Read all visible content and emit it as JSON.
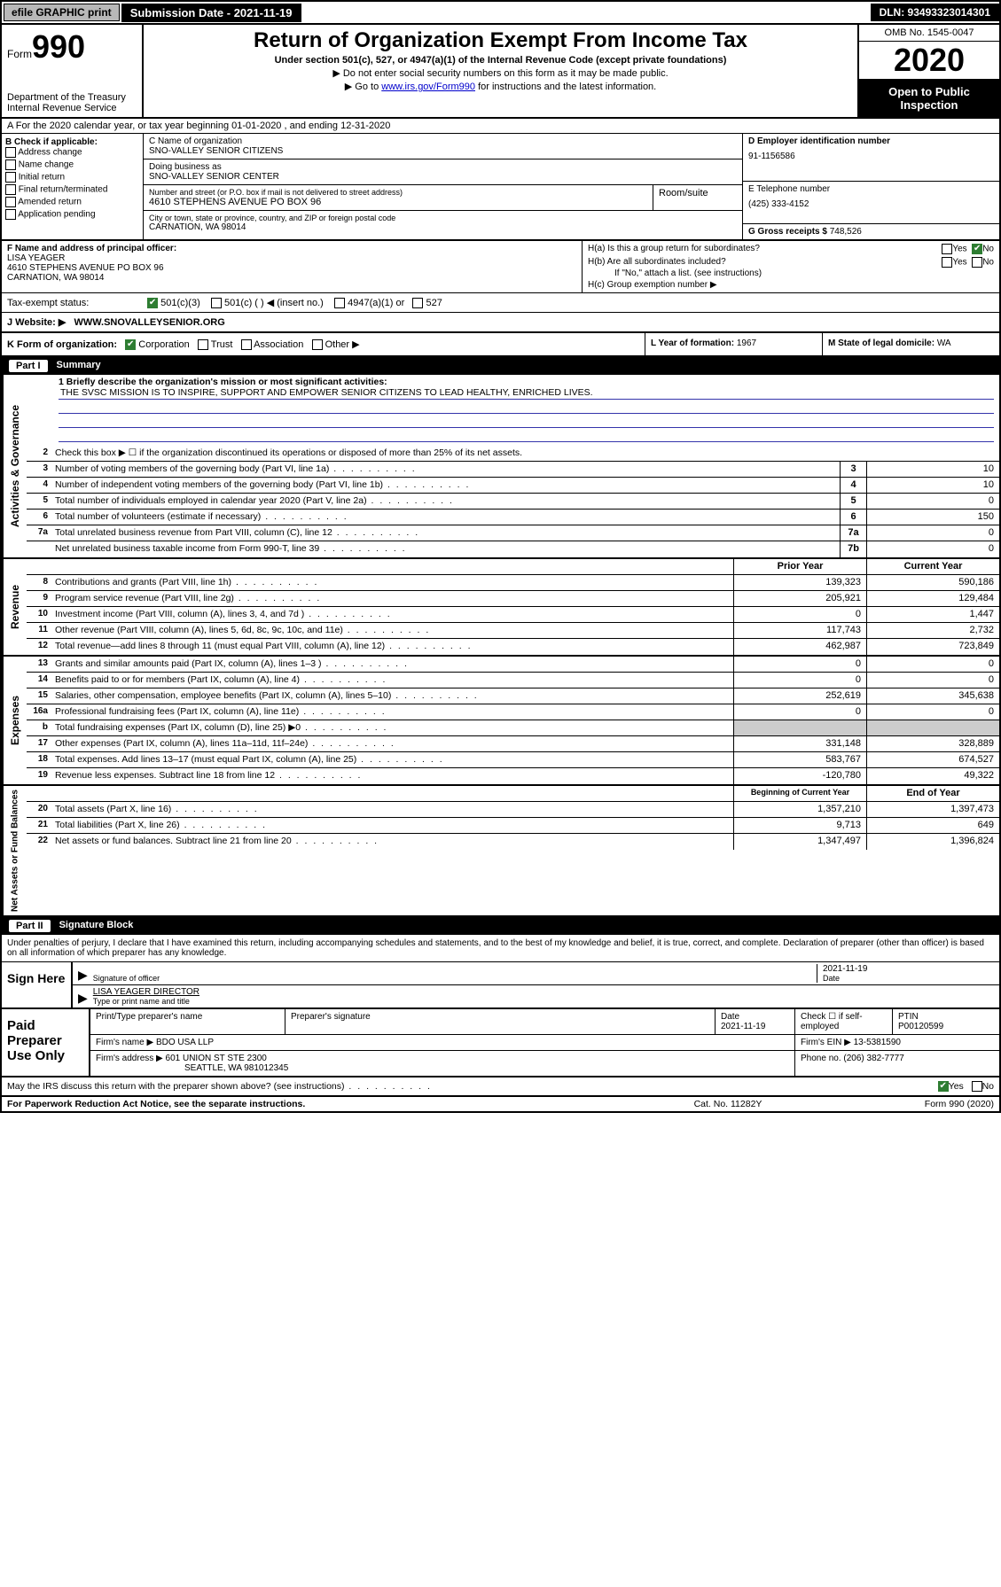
{
  "topbar": {
    "efile": "efile GRAPHIC print",
    "submission": "Submission Date - 2021-11-19",
    "dln": "DLN: 93493323014301"
  },
  "header": {
    "form_prefix": "Form",
    "form_number": "990",
    "dept": "Department of the Treasury\nInternal Revenue Service",
    "title": "Return of Organization Exempt From Income Tax",
    "subtitle": "Under section 501(c), 527, or 4947(a)(1) of the Internal Revenue Code (except private foundations)",
    "note1": "▶ Do not enter social security numbers on this form as it may be made public.",
    "note2_pre": "▶ Go to ",
    "note2_link": "www.irs.gov/Form990",
    "note2_post": " for instructions and the latest information.",
    "omb": "OMB No. 1545-0047",
    "year": "2020",
    "inspection": "Open to Public Inspection"
  },
  "row_a": "A For the 2020 calendar year, or tax year beginning 01-01-2020    , and ending 12-31-2020",
  "col_b": {
    "title": "B Check if applicable:",
    "items": [
      "Address change",
      "Name change",
      "Initial return",
      "Final return/terminated",
      "Amended return",
      "Application pending"
    ]
  },
  "col_c": {
    "name_lbl": "C Name of organization",
    "name": "SNO-VALLEY SENIOR CITIZENS",
    "dba_lbl": "Doing business as",
    "dba": "SNO-VALLEY SENIOR CENTER",
    "addr_lbl": "Number and street (or P.O. box if mail is not delivered to street address)",
    "addr": "4610 STEPHENS AVENUE PO BOX 96",
    "room_lbl": "Room/suite",
    "city_lbl": "City or town, state or province, country, and ZIP or foreign postal code",
    "city": "CARNATION, WA  98014"
  },
  "col_d": {
    "ein_lbl": "D Employer identification number",
    "ein": "91-1156586",
    "phone_lbl": "E Telephone number",
    "phone": "(425) 333-4152",
    "gross_lbl": "G Gross receipts $",
    "gross": "748,526"
  },
  "row_f": {
    "lbl": "F  Name and address of principal officer:",
    "name": "LISA YEAGER",
    "addr1": "4610 STEPHENS AVENUE PO BOX 96",
    "addr2": "CARNATION, WA  98014"
  },
  "row_h": {
    "ha": "H(a)  Is this a group return for subordinates?",
    "hb": "H(b)  Are all subordinates included?",
    "hb_note": "If \"No,\" attach a list. (see instructions)",
    "hc": "H(c)  Group exemption number ▶"
  },
  "tax_status_lbl": "Tax-exempt status:",
  "tax_501c3": "501(c)(3)",
  "tax_501c": "501(c) (   ) ◀ (insert no.)",
  "tax_4947": "4947(a)(1) or",
  "tax_527": "527",
  "website_lbl": "J    Website: ▶",
  "website": "WWW.SNOVALLEYSENIOR.ORG",
  "row_k": {
    "k": "K Form of organization:",
    "corp": "Corporation",
    "trust": "Trust",
    "assoc": "Association",
    "other": "Other ▶",
    "l_lbl": "L Year of formation:",
    "l_val": "1967",
    "m_lbl": "M State of legal domicile:",
    "m_val": "WA"
  },
  "part1": {
    "label": "Part I",
    "title": "Summary"
  },
  "mission_lbl": "1   Briefly describe the organization's mission or most significant activities:",
  "mission": "THE SVSC MISSION IS TO INSPIRE, SUPPORT AND EMPOWER SENIOR CITIZENS TO LEAD HEALTHY, ENRICHED LIVES.",
  "line2": "Check this box ▶ ☐  if the organization discontinued its operations or disposed of more than 25% of its net assets.",
  "governance_lines": [
    {
      "n": "3",
      "d": "Number of voting members of the governing body (Part VI, line 1a)",
      "b": "3",
      "v": "10"
    },
    {
      "n": "4",
      "d": "Number of independent voting members of the governing body (Part VI, line 1b)",
      "b": "4",
      "v": "10"
    },
    {
      "n": "5",
      "d": "Total number of individuals employed in calendar year 2020 (Part V, line 2a)",
      "b": "5",
      "v": "0"
    },
    {
      "n": "6",
      "d": "Total number of volunteers (estimate if necessary)",
      "b": "6",
      "v": "150"
    },
    {
      "n": "7a",
      "d": "Total unrelated business revenue from Part VIII, column (C), line 12",
      "b": "7a",
      "v": "0"
    },
    {
      "n": "",
      "d": "Net unrelated business taxable income from Form 990-T, line 39",
      "b": "7b",
      "v": "0"
    }
  ],
  "col_headers": {
    "prior": "Prior Year",
    "current": "Current Year"
  },
  "revenue_lines": [
    {
      "n": "8",
      "d": "Contributions and grants (Part VIII, line 1h)",
      "p": "139,323",
      "c": "590,186"
    },
    {
      "n": "9",
      "d": "Program service revenue (Part VIII, line 2g)",
      "p": "205,921",
      "c": "129,484"
    },
    {
      "n": "10",
      "d": "Investment income (Part VIII, column (A), lines 3, 4, and 7d )",
      "p": "0",
      "c": "1,447"
    },
    {
      "n": "11",
      "d": "Other revenue (Part VIII, column (A), lines 5, 6d, 8c, 9c, 10c, and 11e)",
      "p": "117,743",
      "c": "2,732"
    },
    {
      "n": "12",
      "d": "Total revenue—add lines 8 through 11 (must equal Part VIII, column (A), line 12)",
      "p": "462,987",
      "c": "723,849"
    }
  ],
  "expense_lines": [
    {
      "n": "13",
      "d": "Grants and similar amounts paid (Part IX, column (A), lines 1–3 )",
      "p": "0",
      "c": "0"
    },
    {
      "n": "14",
      "d": "Benefits paid to or for members (Part IX, column (A), line 4)",
      "p": "0",
      "c": "0"
    },
    {
      "n": "15",
      "d": "Salaries, other compensation, employee benefits (Part IX, column (A), lines 5–10)",
      "p": "252,619",
      "c": "345,638"
    },
    {
      "n": "16a",
      "d": "Professional fundraising fees (Part IX, column (A), line 11e)",
      "p": "0",
      "c": "0"
    },
    {
      "n": "b",
      "d": "Total fundraising expenses (Part IX, column (D), line 25) ▶0",
      "p": "",
      "c": "",
      "shade": true
    },
    {
      "n": "17",
      "d": "Other expenses (Part IX, column (A), lines 11a–11d, 11f–24e)",
      "p": "331,148",
      "c": "328,889"
    },
    {
      "n": "18",
      "d": "Total expenses. Add lines 13–17 (must equal Part IX, column (A), line 25)",
      "p": "583,767",
      "c": "674,527"
    },
    {
      "n": "19",
      "d": "Revenue less expenses. Subtract line 18 from line 12",
      "p": "-120,780",
      "c": "49,322"
    }
  ],
  "net_headers": {
    "begin": "Beginning of Current Year",
    "end": "End of Year"
  },
  "net_lines": [
    {
      "n": "20",
      "d": "Total assets (Part X, line 16)",
      "p": "1,357,210",
      "c": "1,397,473"
    },
    {
      "n": "21",
      "d": "Total liabilities (Part X, line 26)",
      "p": "9,713",
      "c": "649"
    },
    {
      "n": "22",
      "d": "Net assets or fund balances. Subtract line 21 from line 20",
      "p": "1,347,497",
      "c": "1,396,824"
    }
  ],
  "part2": {
    "label": "Part II",
    "title": "Signature Block"
  },
  "sig_text": "Under penalties of perjury, I declare that I have examined this return, including accompanying schedules and statements, and to the best of my knowledge and belief, it is true, correct, and complete. Declaration of preparer (other than officer) is based on all information of which preparer has any knowledge.",
  "sign_here": "Sign Here",
  "sig_officer": "Signature of officer",
  "sig_date": "2021-11-19",
  "sig_date_lbl": "Date",
  "sig_name": "LISA YEAGER  DIRECTOR",
  "sig_name_lbl": "Type or print name and title",
  "paid": {
    "title": "Paid Preparer Use Only",
    "h1": "Print/Type preparer's name",
    "h2": "Preparer's signature",
    "h3": "Date",
    "h3v": "2021-11-19",
    "h4": "Check ☐ if self-employed",
    "h5": "PTIN",
    "h5v": "P00120599",
    "firm_lbl": "Firm's name      ▶",
    "firm": "BDO USA LLP",
    "ein_lbl": "Firm's EIN ▶",
    "ein": "13-5381590",
    "addr_lbl": "Firm's address ▶",
    "addr1": "601 UNION ST STE 2300",
    "addr2": "SEATTLE, WA  981012345",
    "phone_lbl": "Phone no.",
    "phone": "(206) 382-7777"
  },
  "discuss": "May the IRS discuss this return with the preparer shown above? (see instructions)",
  "paperwork": "For Paperwork Reduction Act Notice, see the separate instructions.",
  "catno": "Cat. No. 11282Y",
  "formfoot": "Form 990 (2020)",
  "yes": "Yes",
  "no": "No",
  "side_labels": {
    "gov": "Activities & Governance",
    "rev": "Revenue",
    "exp": "Expenses",
    "net": "Net Assets or Fund Balances"
  }
}
